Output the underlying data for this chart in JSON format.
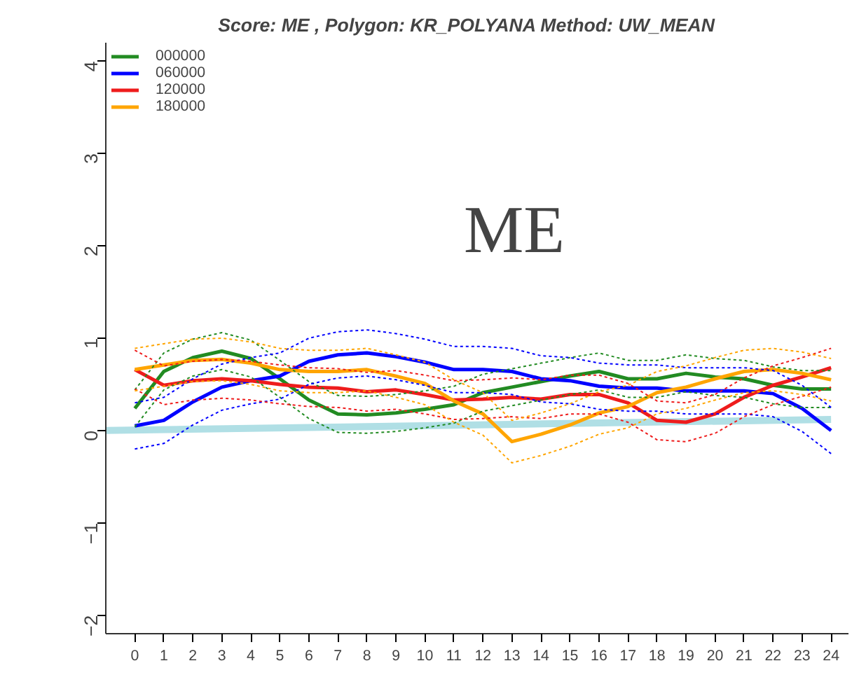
{
  "chart_data": {
    "type": "line",
    "title": "Score:  ME , Polygon:  KR_POLYANA  Method:  UW_MEAN",
    "annotations": [
      "ME"
    ],
    "x": [
      0,
      1,
      2,
      3,
      4,
      5,
      6,
      7,
      8,
      9,
      10,
      11,
      12,
      13,
      14,
      15,
      16,
      17,
      18,
      19,
      20,
      21,
      22,
      23,
      24
    ],
    "xlim": [
      -1,
      24.6
    ],
    "xticks": [
      0,
      1,
      2,
      3,
      4,
      5,
      6,
      7,
      8,
      9,
      10,
      11,
      12,
      13,
      14,
      15,
      16,
      17,
      18,
      19,
      20,
      21,
      22,
      23,
      24
    ],
    "ylim": [
      -2.2,
      4.2
    ],
    "yticks": [
      -2,
      -1,
      0,
      1,
      2,
      3,
      4
    ],
    "grid": false,
    "legend": "top left",
    "marker": "none",
    "line_style": "solid",
    "series": [
      {
        "color": "#b0dfe5",
        "x": [
          -1,
          24
        ],
        "values": [
          0.0,
          0.12
        ]
      },
      {
        "name": "000000",
        "color": "#228b22",
        "values": [
          0.24,
          0.64,
          0.79,
          0.86,
          0.78,
          0.56,
          0.33,
          0.18,
          0.17,
          0.19,
          0.23,
          0.28,
          0.41,
          0.47,
          0.53,
          0.59,
          0.64,
          0.56,
          0.56,
          0.62,
          0.58,
          0.56,
          0.49,
          0.45,
          0.45
        ]
      },
      {
        "name": "060000",
        "color": "#0000ff",
        "values": [
          0.05,
          0.11,
          0.31,
          0.47,
          0.54,
          0.59,
          0.75,
          0.82,
          0.84,
          0.8,
          0.74,
          0.66,
          0.66,
          0.64,
          0.56,
          0.54,
          0.48,
          0.46,
          0.46,
          0.43,
          0.43,
          0.43,
          0.4,
          0.24,
          0.0
        ]
      },
      {
        "name": "120000",
        "color": "#ee1c1c",
        "values": [
          0.66,
          0.49,
          0.54,
          0.56,
          0.54,
          0.5,
          0.47,
          0.46,
          0.42,
          0.44,
          0.39,
          0.33,
          0.34,
          0.36,
          0.34,
          0.39,
          0.39,
          0.3,
          0.11,
          0.09,
          0.18,
          0.36,
          0.49,
          0.58,
          0.68
        ]
      },
      {
        "name": "180000",
        "color": "#ffa500",
        "values": [
          0.66,
          0.71,
          0.76,
          0.77,
          0.73,
          0.66,
          0.64,
          0.64,
          0.66,
          0.59,
          0.51,
          0.32,
          0.18,
          -0.12,
          -0.04,
          0.06,
          0.19,
          0.26,
          0.41,
          0.47,
          0.56,
          0.64,
          0.66,
          0.62,
          0.55
        ]
      },
      {
        "color": "#228b22",
        "line_style": "dotted",
        "values": [
          0.04,
          0.44,
          0.59,
          0.66,
          0.58,
          0.36,
          0.13,
          -0.02,
          -0.03,
          -0.01,
          0.03,
          0.08,
          0.21,
          0.27,
          0.33,
          0.39,
          0.44,
          0.36,
          0.36,
          0.42,
          0.38,
          0.36,
          0.29,
          0.25,
          0.25
        ]
      },
      {
        "color": "#228b22",
        "line_style": "dotted",
        "values": [
          0.44,
          0.84,
          0.99,
          1.06,
          0.98,
          0.76,
          0.53,
          0.38,
          0.37,
          0.39,
          0.43,
          0.48,
          0.61,
          0.67,
          0.73,
          0.79,
          0.84,
          0.76,
          0.76,
          0.82,
          0.78,
          0.76,
          0.69,
          0.65,
          0.65
        ]
      },
      {
        "color": "#0000ff",
        "line_style": "dotted",
        "values": [
          -0.2,
          -0.14,
          0.06,
          0.22,
          0.29,
          0.34,
          0.5,
          0.57,
          0.59,
          0.55,
          0.49,
          0.41,
          0.41,
          0.39,
          0.31,
          0.29,
          0.23,
          0.21,
          0.21,
          0.18,
          0.18,
          0.18,
          0.15,
          -0.01,
          -0.25
        ]
      },
      {
        "color": "#0000ff",
        "line_style": "dotted",
        "values": [
          0.3,
          0.36,
          0.56,
          0.72,
          0.79,
          0.84,
          1.0,
          1.07,
          1.09,
          1.05,
          0.99,
          0.91,
          0.91,
          0.89,
          0.81,
          0.79,
          0.73,
          0.71,
          0.71,
          0.68,
          0.68,
          0.68,
          0.65,
          0.49,
          0.25
        ]
      },
      {
        "color": "#ee1c1c",
        "line_style": "dotted",
        "values": [
          0.45,
          0.28,
          0.33,
          0.35,
          0.33,
          0.29,
          0.26,
          0.25,
          0.21,
          0.23,
          0.18,
          0.12,
          0.13,
          0.15,
          0.13,
          0.18,
          0.18,
          0.09,
          -0.1,
          -0.12,
          -0.03,
          0.15,
          0.28,
          0.37,
          0.47
        ]
      },
      {
        "color": "#ee1c1c",
        "line_style": "dotted",
        "values": [
          0.87,
          0.7,
          0.75,
          0.77,
          0.75,
          0.71,
          0.68,
          0.67,
          0.63,
          0.65,
          0.6,
          0.54,
          0.55,
          0.57,
          0.55,
          0.6,
          0.6,
          0.51,
          0.32,
          0.3,
          0.39,
          0.57,
          0.7,
          0.79,
          0.89
        ]
      },
      {
        "color": "#ffa500",
        "line_style": "dotted",
        "values": [
          0.43,
          0.48,
          0.53,
          0.54,
          0.5,
          0.43,
          0.41,
          0.41,
          0.43,
          0.36,
          0.28,
          0.09,
          -0.05,
          -0.35,
          -0.27,
          -0.17,
          -0.04,
          0.03,
          0.18,
          0.24,
          0.33,
          0.41,
          0.43,
          0.39,
          0.32
        ]
      },
      {
        "color": "#ffa500",
        "line_style": "dotted",
        "values": [
          0.89,
          0.94,
          0.99,
          1.0,
          0.96,
          0.89,
          0.87,
          0.87,
          0.89,
          0.82,
          0.74,
          0.55,
          0.41,
          0.11,
          0.19,
          0.29,
          0.42,
          0.49,
          0.64,
          0.7,
          0.79,
          0.87,
          0.89,
          0.85,
          0.78
        ]
      }
    ]
  }
}
